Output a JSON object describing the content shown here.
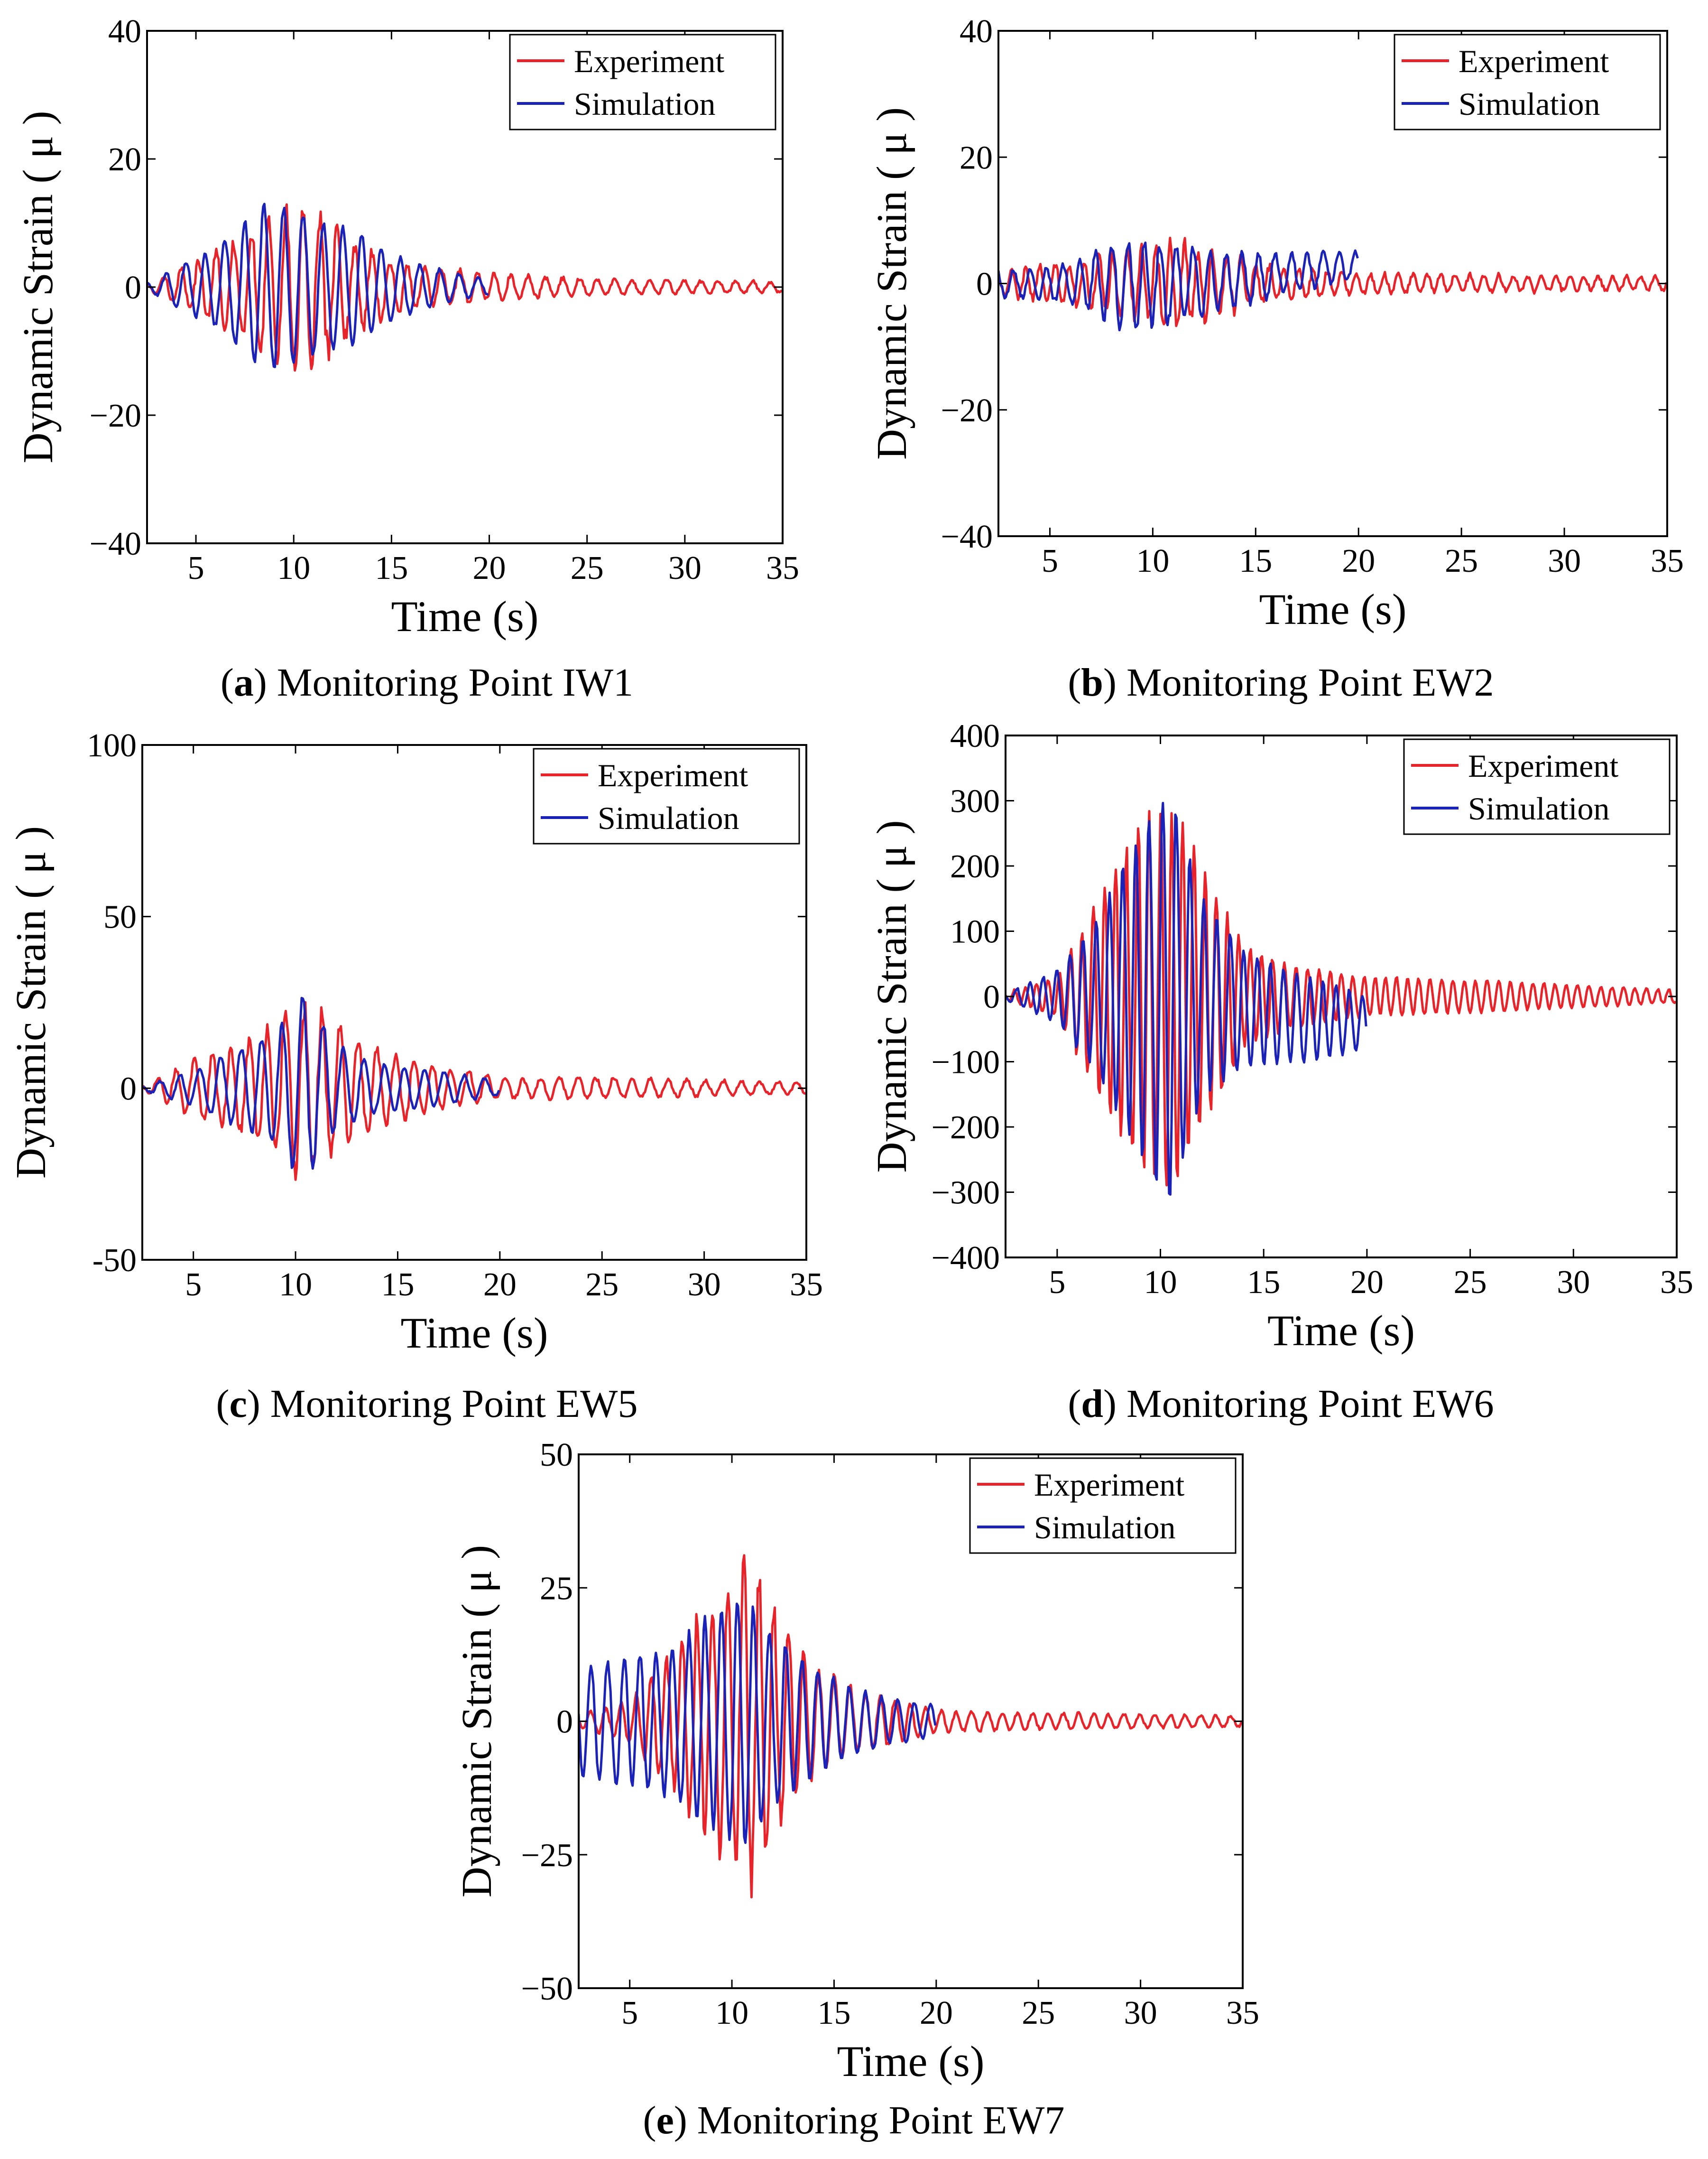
{
  "figure": {
    "panels": [
      {
        "id": "a",
        "letter": "a",
        "caption": "Monitoring Point IW1"
      },
      {
        "id": "b",
        "letter": "b",
        "caption": "Monitoring Point EW2"
      },
      {
        "id": "c",
        "letter": "c",
        "caption": "Monitoring Point EW5"
      },
      {
        "id": "d",
        "letter": "d",
        "caption": "Monitoring Point EW6"
      },
      {
        "id": "e",
        "letter": "e",
        "caption": "Monitoring Point EW7"
      }
    ]
  },
  "colors": {
    "experiment": "#e8242a",
    "simulation": "#1a22b8",
    "axis": "#000000"
  },
  "chart_data": [
    {
      "id": "a",
      "type": "line",
      "title": "",
      "xlabel": "Time (s)",
      "ylabel": "Dynamic Strain ( μ )",
      "xlim": [
        2.5,
        35
      ],
      "ylim": [
        -40,
        40
      ],
      "xticks": [
        5,
        10,
        15,
        20,
        25,
        30,
        35
      ],
      "yticks": [
        -40,
        -20,
        0,
        20,
        40
      ],
      "ytick_labels": [
        "−40",
        "−20",
        "0",
        "20",
        "40"
      ],
      "legend": "top-right",
      "series": [
        {
          "name": "Experiment",
          "end": 35,
          "envelope": [
            [
              2.5,
              0.5
            ],
            [
              5,
              4
            ],
            [
              7,
              7
            ],
            [
              8.5,
              10
            ],
            [
              10,
              12
            ],
            [
              11.5,
              11
            ],
            [
              13,
              7
            ],
            [
              15,
              4
            ],
            [
              17,
              3
            ],
            [
              20,
              2
            ],
            [
              25,
              1.2
            ],
            [
              35,
              0.8
            ]
          ],
          "period": 0.9,
          "noise": 0.35
        },
        {
          "name": "Simulation",
          "end": 20,
          "envelope": [
            [
              2.5,
              0.5
            ],
            [
              4,
              3
            ],
            [
              6,
              6
            ],
            [
              8.5,
              13
            ],
            [
              10,
              12
            ],
            [
              11.5,
              10
            ],
            [
              13,
              9
            ],
            [
              15,
              5
            ],
            [
              17,
              3
            ],
            [
              20,
              1
            ]
          ],
          "period": 1.0,
          "noise": 0.1
        }
      ]
    },
    {
      "id": "b",
      "type": "line",
      "title": "",
      "xlabel": "Time (s)",
      "ylabel": "Dynamic Strain ( μ )",
      "xlim": [
        2.5,
        35
      ],
      "ylim": [
        -40,
        40
      ],
      "xticks": [
        5,
        10,
        15,
        20,
        25,
        30,
        35
      ],
      "yticks": [
        -40,
        -20,
        0,
        20,
        40
      ],
      "ytick_labels": [
        "−40",
        "−20",
        "0",
        "20",
        "40"
      ],
      "legend": "top-right",
      "series": [
        {
          "name": "Experiment",
          "end": 35,
          "envelope": [
            [
              2.5,
              2
            ],
            [
              6,
              3
            ],
            [
              9,
              5
            ],
            [
              11,
              7
            ],
            [
              13,
              5
            ],
            [
              15,
              3
            ],
            [
              20,
              1.5
            ],
            [
              35,
              1
            ]
          ],
          "period": 0.7,
          "noise": 0.5
        },
        {
          "name": "Simulation",
          "end": 20,
          "envelope": [
            [
              2.5,
              2
            ],
            [
              6,
              3
            ],
            [
              8.5,
              7
            ],
            [
              11,
              6
            ],
            [
              14,
              4
            ],
            [
              17,
              3
            ],
            [
              20,
              2
            ]
          ],
          "offset": [
            [
              12,
              0
            ],
            [
              15,
              1
            ],
            [
              17,
              2
            ],
            [
              20,
              3
            ]
          ],
          "period": 0.8,
          "noise": 0.3
        }
      ]
    },
    {
      "id": "c",
      "type": "line",
      "title": "",
      "xlabel": "Time (s)",
      "ylabel": "Dynamic Strain ( μ )",
      "xlim": [
        2.5,
        35
      ],
      "ylim": [
        -50,
        100
      ],
      "xticks": [
        5,
        10,
        15,
        20,
        25,
        30,
        35
      ],
      "yticks": [
        -50,
        0,
        50,
        100
      ],
      "ytick_labels": [
        "-50",
        "0",
        "50",
        "100"
      ],
      "legend": "top-right",
      "series": [
        {
          "name": "Experiment",
          "end": 35,
          "envelope": [
            [
              2.5,
              0.5
            ],
            [
              5,
              8
            ],
            [
              7,
              12
            ],
            [
              9,
              18
            ],
            [
              10,
              26
            ],
            [
              11,
              22
            ],
            [
              12.5,
              16
            ],
            [
              15,
              9
            ],
            [
              18,
              5
            ],
            [
              20,
              3
            ],
            [
              25,
              3
            ],
            [
              35,
              1.5
            ]
          ],
          "period": 0.9,
          "noise": 0.3
        },
        {
          "name": "Simulation",
          "end": 20,
          "envelope": [
            [
              2.5,
              0.5
            ],
            [
              5,
              5
            ],
            [
              7.5,
              12
            ],
            [
              9,
              16
            ],
            [
              10.5,
              28
            ],
            [
              12,
              12
            ],
            [
              14,
              7
            ],
            [
              17,
              5
            ],
            [
              20,
              2
            ]
          ],
          "period": 1.0,
          "noise": 0.15
        }
      ]
    },
    {
      "id": "d",
      "type": "line",
      "title": "",
      "xlabel": "Time (s)",
      "ylabel": "Dynamic Strain ( μ )",
      "xlim": [
        2.5,
        35
      ],
      "ylim": [
        -400,
        400
      ],
      "xticks": [
        5,
        10,
        15,
        20,
        25,
        30,
        35
      ],
      "yticks": [
        -400,
        -300,
        -200,
        -100,
        0,
        100,
        200,
        300,
        400
      ],
      "ytick_labels": [
        "−400",
        "−300",
        "−200",
        "−100",
        "0",
        "100",
        "200",
        "300",
        "400"
      ],
      "legend": "top-right",
      "series": [
        {
          "name": "Experiment",
          "end": 35,
          "envelope": [
            [
              2.5,
              5
            ],
            [
              5,
              30
            ],
            [
              7,
              150
            ],
            [
              9,
              260
            ],
            [
              10.5,
              300
            ],
            [
              12,
              200
            ],
            [
              14,
              80
            ],
            [
              16,
              50
            ],
            [
              18,
              40
            ],
            [
              20,
              30
            ],
            [
              25,
              25
            ],
            [
              35,
              10
            ]
          ],
          "period": 0.55,
          "noise": 0.1
        },
        {
          "name": "Simulation",
          "end": 20,
          "envelope": [
            [
              2.5,
              5
            ],
            [
              5,
              40
            ],
            [
              7,
              120
            ],
            [
              8.5,
              220
            ],
            [
              10.5,
              320
            ],
            [
              12,
              150
            ],
            [
              14,
              90
            ],
            [
              16,
              70
            ],
            [
              18,
              60
            ],
            [
              20,
              40
            ]
          ],
          "offset": [
            [
              12,
              0
            ],
            [
              14,
              -20
            ],
            [
              17,
              -35
            ],
            [
              20,
              -40
            ]
          ],
          "period": 0.65,
          "noise": 0.05
        }
      ]
    },
    {
      "id": "e",
      "type": "line",
      "title": "",
      "xlabel": "Time (s)",
      "ylabel": "Dynamic Strain ( μ )",
      "xlim": [
        2.5,
        35
      ],
      "ylim": [
        -50,
        50
      ],
      "xticks": [
        5,
        10,
        15,
        20,
        25,
        30,
        35
      ],
      "yticks": [
        -50,
        -25,
        0,
        25,
        50
      ],
      "ytick_labels": [
        "−50",
        "−25",
        "0",
        "25",
        "50"
      ],
      "legend": "top-right",
      "series": [
        {
          "name": "Experiment",
          "end": 35,
          "envelope": [
            [
              2.5,
              1
            ],
            [
              5,
              4
            ],
            [
              7,
              12
            ],
            [
              9,
              22
            ],
            [
              10,
              27
            ],
            [
              11,
              30
            ],
            [
              12.5,
              18
            ],
            [
              14,
              10
            ],
            [
              16,
              6
            ],
            [
              18,
              4
            ],
            [
              20,
              2
            ],
            [
              25,
              1.5
            ],
            [
              35,
              1
            ]
          ],
          "period": 0.75,
          "noise": 0.25
        },
        {
          "name": "Simulation",
          "end": 20,
          "envelope": [
            [
              2.5,
              10
            ],
            [
              5,
              12
            ],
            [
              7,
              14
            ],
            [
              9,
              20
            ],
            [
              10.5,
              24
            ],
            [
              12,
              16
            ],
            [
              14,
              10
            ],
            [
              16,
              6
            ],
            [
              18,
              4
            ],
            [
              20,
              3
            ]
          ],
          "period": 0.8,
          "noise": 0.1
        }
      ]
    }
  ]
}
